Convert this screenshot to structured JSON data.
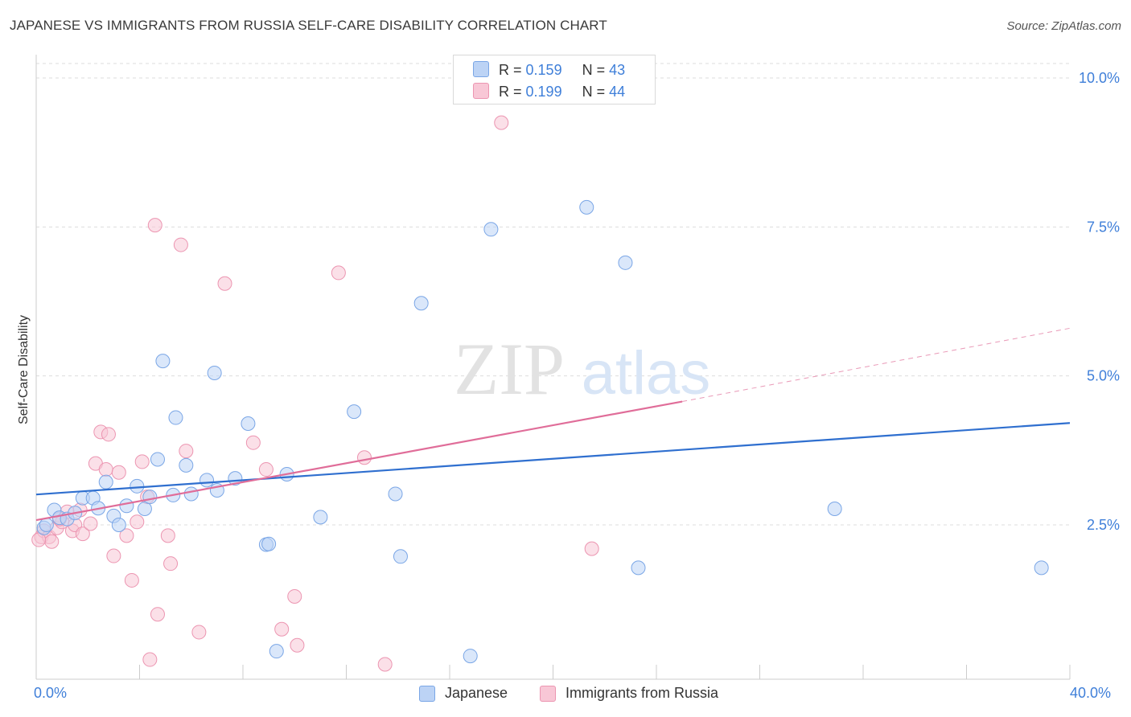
{
  "header": {
    "title": "JAPANESE VS IMMIGRANTS FROM RUSSIA SELF-CARE DISABILITY CORRELATION CHART",
    "source": "Source: ZipAtlas.com"
  },
  "watermark": {
    "zip": "ZIP",
    "atlas": "atlas"
  },
  "legend": {
    "series": [
      {
        "r_label": "R =",
        "r_value": "0.159",
        "n_label": "N =",
        "n_value": "43"
      },
      {
        "r_label": "R =",
        "r_value": "0.199",
        "n_label": "N =",
        "n_value": "44"
      }
    ]
  },
  "bottom_legend": {
    "items": [
      "Japanese",
      "Immigrants from Russia"
    ]
  },
  "colors": {
    "blue_fill": "#bcd3f5",
    "blue_stroke": "#7aa6e6",
    "blue_line": "#2f6fcf",
    "pink_fill": "#f8c7d6",
    "pink_stroke": "#ec95b1",
    "pink_line": "#e06d99",
    "grid": "#dddddd",
    "tick_text": "#3f7fd9"
  },
  "chart_data": {
    "type": "scatter",
    "title": "JAPANESE VS IMMIGRANTS FROM RUSSIA SELF-CARE DISABILITY CORRELATION CHART",
    "xlabel": "",
    "ylabel": "Self-Care Disability",
    "xlim": [
      0,
      40
    ],
    "ylim": [
      0,
      10.5
    ],
    "x_tick_labels": [
      "0.0%",
      "40.0%"
    ],
    "y_ticks": [
      2.5,
      5.0,
      7.5,
      10.0
    ],
    "y_tick_labels": [
      "2.5%",
      "5.0%",
      "7.5%",
      "10.0%"
    ],
    "series": [
      {
        "name": "Japanese",
        "r": 0.159,
        "n": 43,
        "trend": {
          "x0": 0,
          "y0": 3.01,
          "x1": 40,
          "y1": 4.21
        },
        "points": [
          [
            0.3,
            2.45
          ],
          [
            0.4,
            2.5
          ],
          [
            0.7,
            2.75
          ],
          [
            0.9,
            2.62
          ],
          [
            1.2,
            2.6
          ],
          [
            1.5,
            2.7
          ],
          [
            1.8,
            2.95
          ],
          [
            2.2,
            2.95
          ],
          [
            2.4,
            2.78
          ],
          [
            2.7,
            3.22
          ],
          [
            3.0,
            2.65
          ],
          [
            3.2,
            2.5
          ],
          [
            3.5,
            2.82
          ],
          [
            3.9,
            3.15
          ],
          [
            4.2,
            2.77
          ],
          [
            4.4,
            2.97
          ],
          [
            4.7,
            3.6
          ],
          [
            4.9,
            5.25
          ],
          [
            5.3,
            3.0
          ],
          [
            5.4,
            4.3
          ],
          [
            5.8,
            3.5
          ],
          [
            6.0,
            3.02
          ],
          [
            6.6,
            3.25
          ],
          [
            6.9,
            5.05
          ],
          [
            7.0,
            3.08
          ],
          [
            7.7,
            3.28
          ],
          [
            8.2,
            4.2
          ],
          [
            8.9,
            2.17
          ],
          [
            9.0,
            2.18
          ],
          [
            9.3,
            0.38
          ],
          [
            9.7,
            3.35
          ],
          [
            11.0,
            2.63
          ],
          [
            12.3,
            4.4
          ],
          [
            13.9,
            3.02
          ],
          [
            14.1,
            1.97
          ],
          [
            14.9,
            6.22
          ],
          [
            16.8,
            0.3
          ],
          [
            17.6,
            7.46
          ],
          [
            21.3,
            7.83
          ],
          [
            22.8,
            6.9
          ],
          [
            23.3,
            1.78
          ],
          [
            30.9,
            2.77
          ],
          [
            38.9,
            1.78
          ]
        ]
      },
      {
        "name": "Immigrants from Russia",
        "r": 0.199,
        "n": 44,
        "trend": {
          "x0": 0,
          "y0": 2.58,
          "x1": 25,
          "y1": 4.57,
          "dash_x1": 40,
          "dash_y1": 5.8
        },
        "points": [
          [
            0.2,
            2.3
          ],
          [
            0.3,
            2.4
          ],
          [
            0.5,
            2.3
          ],
          [
            0.6,
            2.22
          ],
          [
            0.8,
            2.45
          ],
          [
            1.0,
            2.55
          ],
          [
            1.2,
            2.72
          ],
          [
            1.4,
            2.4
          ],
          [
            1.5,
            2.5
          ],
          [
            1.7,
            2.75
          ],
          [
            1.8,
            2.35
          ],
          [
            2.1,
            2.52
          ],
          [
            2.3,
            3.53
          ],
          [
            2.5,
            4.06
          ],
          [
            2.7,
            3.43
          ],
          [
            2.8,
            4.02
          ],
          [
            3.0,
            1.98
          ],
          [
            3.2,
            3.38
          ],
          [
            3.5,
            2.32
          ],
          [
            3.7,
            1.57
          ],
          [
            3.9,
            2.55
          ],
          [
            4.1,
            3.56
          ],
          [
            4.3,
            2.97
          ],
          [
            4.4,
            0.24
          ],
          [
            4.6,
            7.53
          ],
          [
            4.7,
            1.0
          ],
          [
            5.1,
            2.32
          ],
          [
            5.2,
            1.85
          ],
          [
            5.6,
            7.2
          ],
          [
            5.8,
            3.74
          ],
          [
            6.3,
            0.7
          ],
          [
            7.3,
            6.55
          ],
          [
            8.4,
            3.88
          ],
          [
            8.9,
            3.43
          ],
          [
            9.5,
            0.75
          ],
          [
            10.0,
            1.3
          ],
          [
            10.1,
            0.48
          ],
          [
            11.7,
            6.73
          ],
          [
            12.7,
            3.63
          ],
          [
            13.5,
            0.16
          ],
          [
            18.0,
            9.25
          ],
          [
            21.5,
            2.1
          ],
          [
            0.1,
            2.25
          ],
          [
            0.9,
            2.6
          ]
        ]
      }
    ]
  }
}
